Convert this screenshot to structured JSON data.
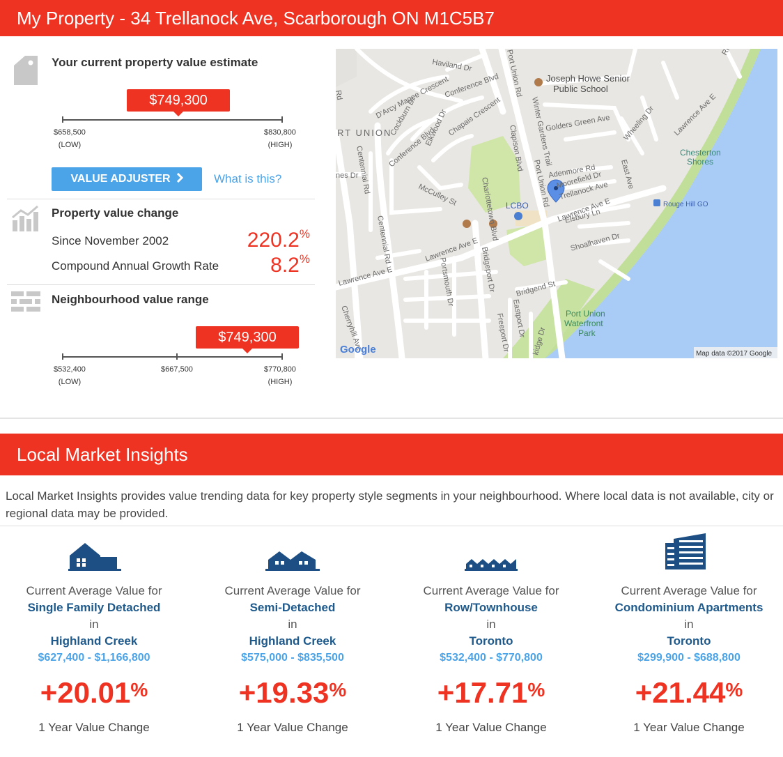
{
  "header": {
    "title": "My Property - 34 Trellanock Ave, Scarborough ON M1C5B7"
  },
  "estimate": {
    "title": "Your current property value estimate",
    "value": "$749,300",
    "position_fraction": 0.53,
    "low_value": "$658,500",
    "low_label": "(LOW)",
    "high_value": "$830,800",
    "high_label": "(HIGH)",
    "adjuster_label": "VALUE ADJUSTER",
    "what_is_this": "What is this?"
  },
  "value_change": {
    "title": "Property value change",
    "since_label": "Since November 2002",
    "since_value": "220.2",
    "cagr_label": "Compound Annual Growth Rate",
    "cagr_value": "8.2",
    "percent": "%"
  },
  "neighbourhood": {
    "title": "Neighbourhood value range",
    "value": "$749,300",
    "position_fraction": 0.82,
    "low_value": "$532,400",
    "low_label": "(LOW)",
    "mid_value": "$667,500",
    "high_value": "$770,800",
    "high_label": "(HIGH)"
  },
  "map": {
    "attribution": "Map data ©2017 Google",
    "logo": "Google",
    "labels": {
      "joseph_howe": "Joseph Howe Senior",
      "public_school": "Public School",
      "port_union_left": "RT UNION",
      "chesterton": "Chesterton",
      "shores": "Shores",
      "lcbo": "LCBO",
      "rouge_hill": "Rouge Hill GO",
      "port_union_park1": "Port Union",
      "port_union_park2": "Waterfront",
      "port_union_park3": "Park",
      "haviland": "Haviland Dr",
      "darcy": "D'Arcy Magee Crescent",
      "conference_blvd": "Conference Blvd",
      "conference_blvd2": "Conference Blvd",
      "cockburn": "Cockburn Dr",
      "elkwood": "Elkwood Dr",
      "chapais": "Chapais Crescent",
      "centennial": "Centennial Rd",
      "centennial2": "Centennial Rd",
      "mcculley": "McCulley St",
      "charlottetown": "Charlottetown Blvd",
      "clapison": "Clapison Blvd",
      "port_union_rd": "Port Union Rd",
      "port_union_rd2": "Port Union Rd",
      "winter_gardens": "Winter Gardens Trail",
      "golders": "Golders Green Ave",
      "wheeling": "Wheeling Dr",
      "east_ave": "East Ave",
      "lawrence_top": "Lawrence Ave E",
      "lawrence_mid": "Lawrence Ave E",
      "lawrence_left": "Lawrence Ave E",
      "lawrence_right": "Lawrence Ave E",
      "adenmore": "Adenmore Rd",
      "moorefield": "Moorefield Dr",
      "trellanock": "Trellanock Ave",
      "elsbury": "Elsbury Ln",
      "shoalhaven": "Shoalhaven Dr",
      "portsmouth": "Portsmouth Dr",
      "bridgeport": "Bridgeport Dr",
      "bridgend": "Bridgend St",
      "eastport": "Eastport Dr",
      "freeport": "Freeport Dr",
      "cherryhill": "Cherryhill Ave",
      "jones": "nes Dr",
      "rd_left": "Rd",
      "ridge": "Ridge",
      "kidge": "kidge Dr"
    }
  },
  "insights": {
    "title": "Local Market Insights",
    "description": "Local Market Insights provides value trending data for key property style segments in your neighbourhood. Where local data is not available, city or regional data may be provided.",
    "columns": [
      {
        "icon": "single-family-house-icon",
        "cav_label": "Current Average Value for",
        "style": "Single Family Detached",
        "in_label": "in",
        "area": "Highland Creek",
        "range": "$627,400 - $1,166,800",
        "change": "+20.01",
        "percent": "%",
        "change_label": "1 Year Value Change"
      },
      {
        "icon": "semi-detached-house-icon",
        "cav_label": "Current Average Value for",
        "style": "Semi-Detached",
        "in_label": "in",
        "area": "Highland Creek",
        "range": "$575,000 - $835,500",
        "change": "+19.33",
        "percent": "%",
        "change_label": "1 Year Value Change"
      },
      {
        "icon": "townhouse-icon",
        "cav_label": "Current Average Value for",
        "style": "Row/Townhouse",
        "in_label": "in",
        "area": "Toronto",
        "range": "$532,400 - $770,800",
        "change": "+17.71",
        "percent": "%",
        "change_label": "1 Year Value Change"
      },
      {
        "icon": "condo-building-icon",
        "cav_label": "Current Average Value for",
        "style": "Condominium Apartments",
        "in_label": "in",
        "area": "Toronto",
        "range": "$299,900 - $688,800",
        "change": "+21.44",
        "percent": "%",
        "change_label": "1 Year Value Change"
      }
    ]
  },
  "colors": {
    "accent_red": "#ee3323",
    "link_blue": "#4ba3e8",
    "dark_blue": "#1f5a8c",
    "icon_gray": "#c8c8c8"
  }
}
